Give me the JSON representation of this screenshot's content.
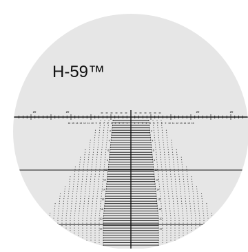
{
  "reticle": {
    "title": "H-59™",
    "colors": {
      "background": "#ffffff",
      "field": "#e6e6e6",
      "ink": "#111111"
    },
    "horizontal_labels_major": [
      "20",
      "20",
      "20",
      "20"
    ],
    "horizontal_labels_minor": [
      "16",
      "15",
      "14",
      "13",
      "12",
      "11",
      "10",
      "9",
      "8",
      "7",
      "6",
      "5",
      "4",
      "3",
      "2",
      "1",
      "",
      "1",
      "2",
      "3",
      "4",
      "5",
      "6",
      "7",
      "8",
      "9",
      "10",
      "11",
      "12",
      "13",
      "14",
      "15",
      "16"
    ],
    "vertical_labels": [
      "2",
      "4",
      "6",
      "8",
      "10",
      "12",
      "14",
      "16",
      "18",
      "20",
      "22"
    ]
  }
}
